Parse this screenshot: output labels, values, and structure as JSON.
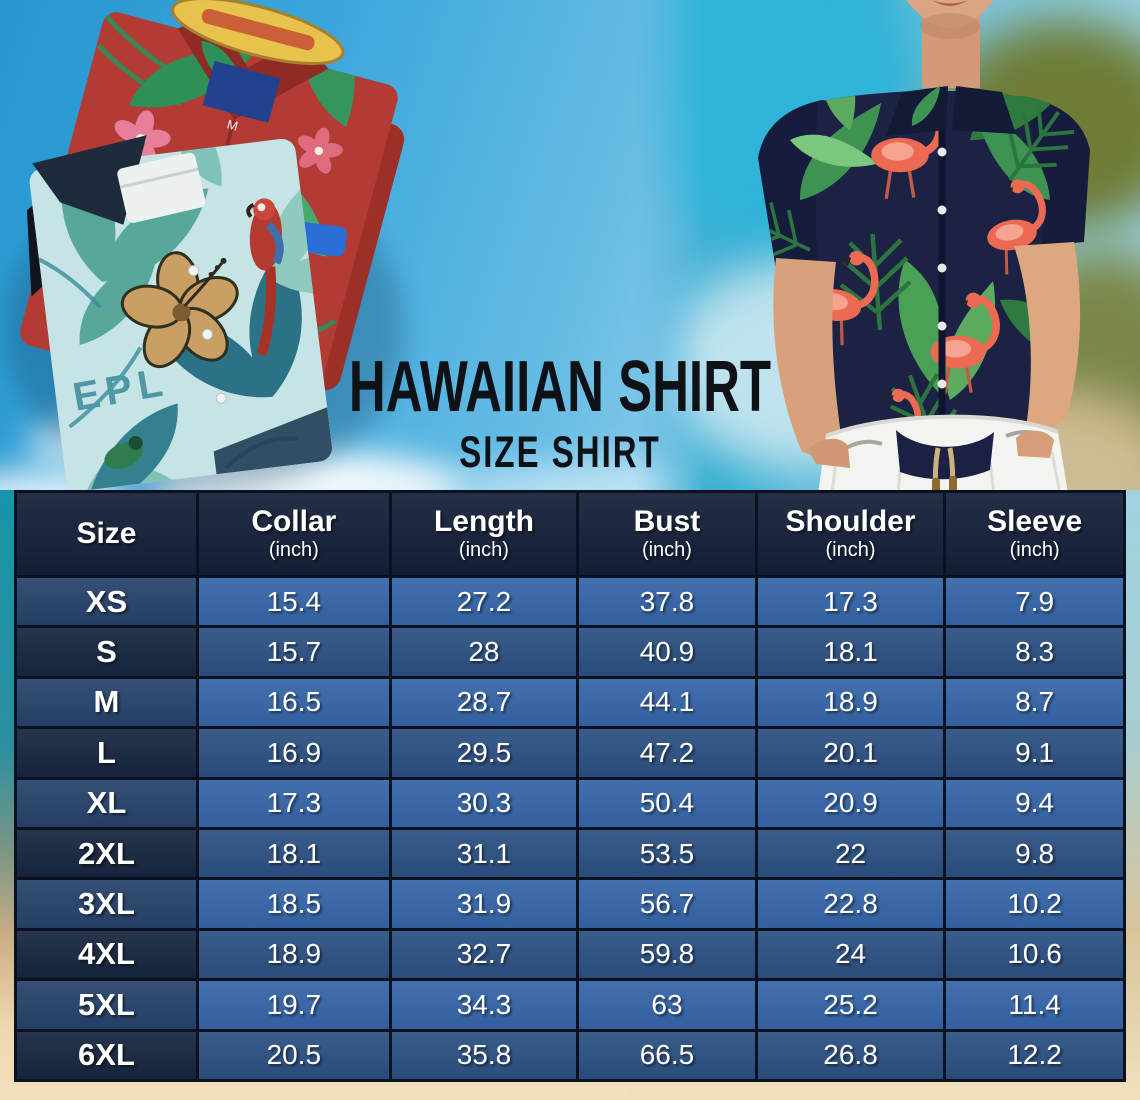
{
  "photos": {
    "left": {
      "shirt_print_text": "EPL",
      "size_tag": "M"
    }
  },
  "colors": {
    "header_bg": "#141f38",
    "row_odd_bg": "#3565a7",
    "row_odd_size_bg": "#26426c",
    "row_even_bg": "#2c5082",
    "row_even_size_bg": "#16253f",
    "grid_border": "#0a1222",
    "table_text": "#ffffff",
    "title_text": "#0e1217",
    "sand": "#eed7ae",
    "sky_blue": "#2fa2d9",
    "ocean_teal": "#1795a8"
  },
  "chart_data": {
    "type": "table",
    "title": "HAWAIIAN SHIRT",
    "subtitle": "SIZE SHIRT",
    "columns": [
      {
        "key": "size",
        "label": "Size",
        "unit": ""
      },
      {
        "key": "collar",
        "label": "Collar",
        "unit": "(inch)"
      },
      {
        "key": "length",
        "label": "Length",
        "unit": "(inch)"
      },
      {
        "key": "bust",
        "label": "Bust",
        "unit": "(inch)"
      },
      {
        "key": "shoulder",
        "label": "Shoulder",
        "unit": "(inch)"
      },
      {
        "key": "sleeve",
        "label": "Sleeve",
        "unit": "(inch)"
      }
    ],
    "rows": [
      {
        "size": "XS",
        "values": [
          "15.4",
          "27.2",
          "37.8",
          "17.3",
          "7.9"
        ]
      },
      {
        "size": "S",
        "values": [
          "15.7",
          "28",
          "40.9",
          "18.1",
          "8.3"
        ]
      },
      {
        "size": "M",
        "values": [
          "16.5",
          "28.7",
          "44.1",
          "18.9",
          "8.7"
        ]
      },
      {
        "size": "L",
        "values": [
          "16.9",
          "29.5",
          "47.2",
          "20.1",
          "9.1"
        ]
      },
      {
        "size": "XL",
        "values": [
          "17.3",
          "30.3",
          "50.4",
          "20.9",
          "9.4"
        ]
      },
      {
        "size": "2XL",
        "values": [
          "18.1",
          "31.1",
          "53.5",
          "22",
          "9.8"
        ]
      },
      {
        "size": "3XL",
        "values": [
          "18.5",
          "31.9",
          "56.7",
          "22.8",
          "10.2"
        ]
      },
      {
        "size": "4XL",
        "values": [
          "18.9",
          "32.7",
          "59.8",
          "24",
          "10.6"
        ]
      },
      {
        "size": "5XL",
        "values": [
          "19.7",
          "34.3",
          "63",
          "25.2",
          "11.4"
        ]
      },
      {
        "size": "6XL",
        "values": [
          "20.5",
          "35.8",
          "66.5",
          "26.8",
          "12.2"
        ]
      }
    ]
  }
}
